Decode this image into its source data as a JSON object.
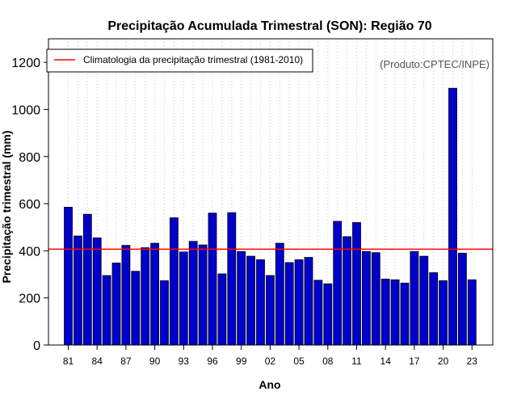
{
  "chart_data": {
    "type": "bar",
    "title": "Precipitação Acumulada Trimestral (SON): Região 70",
    "xlabel": "Ano",
    "ylabel": "Precipitação trimestral (mm)",
    "ylim": [
      0,
      1300
    ],
    "yticks": [
      0,
      200,
      400,
      600,
      800,
      1000,
      1200
    ],
    "x_tick_labels": [
      "81",
      "84",
      "87",
      "90",
      "93",
      "96",
      "99",
      "02",
      "05",
      "08",
      "11",
      "14",
      "17",
      "20",
      "23"
    ],
    "x_tick_years": [
      1981,
      1984,
      1987,
      1990,
      1993,
      1996,
      1999,
      2002,
      2005,
      2008,
      2011,
      2014,
      2017,
      2020,
      2023
    ],
    "years": [
      1981,
      1982,
      1983,
      1984,
      1985,
      1986,
      1987,
      1988,
      1989,
      1990,
      1991,
      1992,
      1993,
      1994,
      1995,
      1996,
      1997,
      1998,
      1999,
      2000,
      2001,
      2002,
      2003,
      2004,
      2005,
      2006,
      2007,
      2008,
      2009,
      2010,
      2011,
      2012,
      2013,
      2014,
      2015,
      2016,
      2017,
      2018,
      2019,
      2020,
      2021,
      2022,
      2023
    ],
    "values": [
      585,
      463,
      555,
      455,
      295,
      348,
      423,
      313,
      413,
      432,
      273,
      540,
      395,
      440,
      425,
      560,
      302,
      562,
      397,
      377,
      362,
      295,
      432,
      350,
      362,
      372,
      275,
      260,
      525,
      460,
      520,
      397,
      392,
      280,
      277,
      263,
      397,
      377,
      307,
      273,
      1090,
      390,
      277
    ],
    "climatology": 407,
    "legend": "Climatologia da precipitação trimestral (1981-2010)",
    "legend_position": "top-left",
    "credit": "(Produto:CPTEC/INPE)",
    "grid": "vertical dotted",
    "bar_color": "#0000cc",
    "climatology_color": "#ff0000"
  }
}
